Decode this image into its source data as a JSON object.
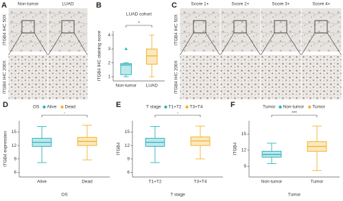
{
  "image_panels": [
    {
      "label": "A",
      "column_labels": [
        "Non-tumor",
        "LUAD"
      ],
      "row_labels": [
        "ITGB4 IHC 50X",
        "ITGB4 IHC 200X"
      ]
    },
    {
      "label": "C",
      "column_labels": [
        "Score 1+",
        "Score 2+",
        "Score 3+",
        "Score 4+"
      ],
      "row_labels": [
        "ITGB4 IHC 50X",
        "ITGB4 IHC 200X"
      ]
    }
  ],
  "chart_data": [
    {
      "type": "box",
      "panel_label": "B",
      "title": "LUAD cohort",
      "y_label": "ITGB4 IHC staining score",
      "categories": [
        "Non-tumor",
        "LUAD"
      ],
      "colors": [
        "#2bb3bd",
        "#f0b429"
      ],
      "boxes": [
        {
          "whisker_low": 1,
          "q1": 1.15,
          "median": 1.85,
          "q3": 1.95,
          "whisker_high": 2,
          "outliers": [
            3
          ]
        },
        {
          "whisker_low": 1,
          "q1": 1.9,
          "median": 2.5,
          "q3": 3,
          "whisker_high": 4,
          "outliers": []
        }
      ],
      "ylim": [
        0.7,
        4.3
      ],
      "yticks": [
        1,
        2,
        3,
        4
      ],
      "annotation": "*"
    },
    {
      "type": "box",
      "panel_label": "D",
      "legend_title": "OS",
      "y_label": "ITGB4 expression",
      "x_label": "OS",
      "categories": [
        "Alive",
        "Dead"
      ],
      "colors": [
        "#2bb3bd",
        "#f0b429"
      ],
      "boxes": [
        {
          "whisker_low": 8.2,
          "q1": 11.8,
          "median": 12.7,
          "q3": 13.6,
          "whisker_high": 16.2,
          "outliers": []
        },
        {
          "whisker_low": 8.8,
          "q1": 12,
          "median": 12.9,
          "q3": 13.8,
          "whisker_high": 16.5,
          "outliers": []
        }
      ],
      "ylim": [
        5,
        17.5
      ],
      "yticks": [
        6,
        9,
        12,
        15
      ],
      "annotation": "-"
    },
    {
      "type": "box",
      "panel_label": "E",
      "legend_title": "T stage",
      "y_label": "ITGB4",
      "x_label": "T stage",
      "categories": [
        "T1+T2",
        "T3+T4"
      ],
      "colors": [
        "#2bb3bd",
        "#f0b429"
      ],
      "boxes": [
        {
          "whisker_low": 8.2,
          "q1": 11.8,
          "median": 12.7,
          "q3": 13.6,
          "whisker_high": 16.2,
          "outliers": []
        },
        {
          "whisker_low": 9,
          "q1": 12,
          "median": 13,
          "q3": 13.9,
          "whisker_high": 16.3,
          "outliers": []
        }
      ],
      "ylim": [
        5,
        17.5
      ],
      "yticks": [
        6,
        9,
        12,
        15
      ],
      "annotation": "-"
    },
    {
      "type": "box",
      "panel_label": "F",
      "legend_title": "Tumor",
      "y_label": "ITGB4",
      "x_label": "Tumor",
      "categories": [
        "Non-tumor",
        "Tumor"
      ],
      "colors": [
        "#2bb3bd",
        "#f0b429"
      ],
      "boxes": [
        {
          "whisker_low": 9.5,
          "q1": 10.7,
          "median": 11.2,
          "q3": 11.8,
          "whisker_high": 13.3,
          "outliers": []
        },
        {
          "whisker_low": 8.2,
          "q1": 11.8,
          "median": 12.7,
          "q3": 13.6,
          "whisker_high": 16.5,
          "outliers": []
        }
      ],
      "ylim": [
        7,
        17.5
      ],
      "yticks": [
        9,
        12,
        15
      ],
      "annotation": "***"
    }
  ]
}
